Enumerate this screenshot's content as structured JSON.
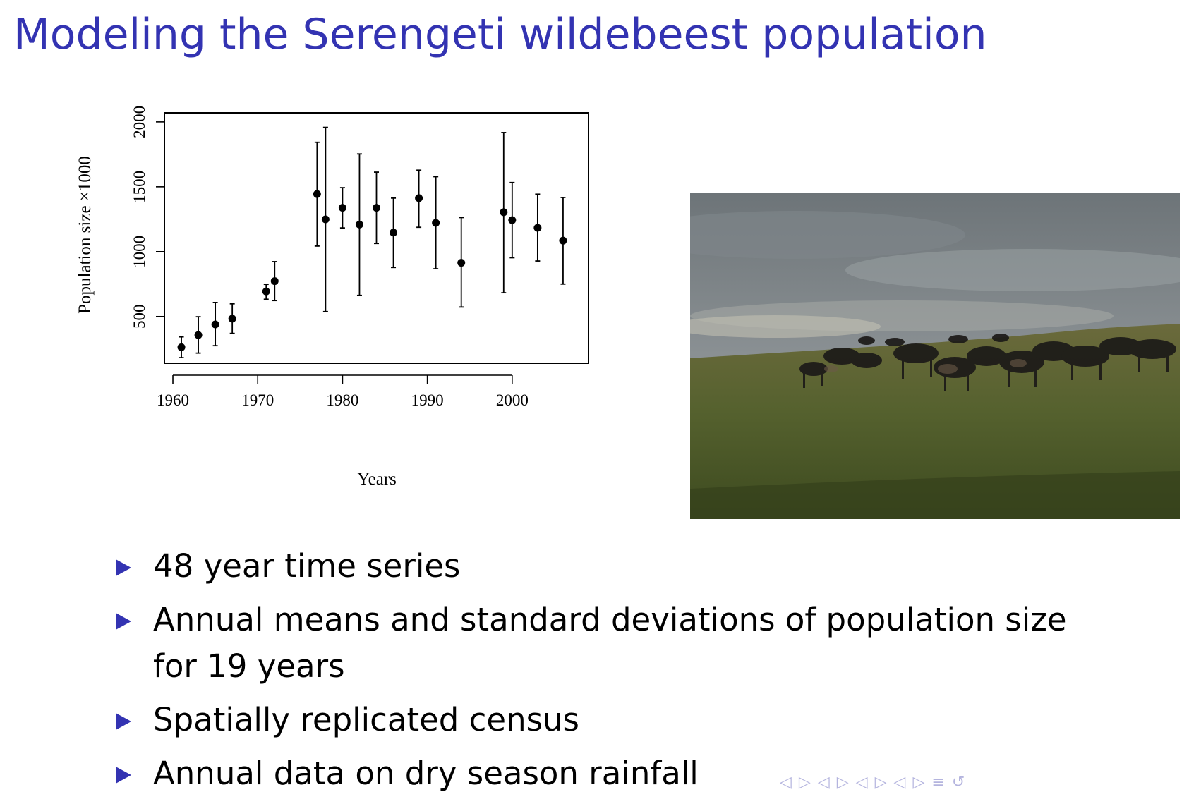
{
  "slide": {
    "title": "Modeling the Serengeti wildebeest population"
  },
  "chart_data": {
    "type": "scatter",
    "xlabel": "Years",
    "ylabel": "Population size ×1000",
    "xlim": [
      1959,
      2009
    ],
    "ylim": [
      140,
      2070
    ],
    "xticks": [
      1960,
      1970,
      1980,
      1990,
      2000
    ],
    "yticks": [
      500,
      1000,
      1500,
      2000
    ],
    "grid": false,
    "series": [
      {
        "x": [
          1961,
          1963,
          1965,
          1967,
          1971,
          1972,
          1977,
          1978,
          1980,
          1982,
          1984,
          1986,
          1989,
          1991,
          1994,
          1999,
          2000,
          2003,
          2006
        ],
        "y": [
          263,
          357,
          439,
          483,
          693,
          773,
          1444,
          1249,
          1338,
          1209,
          1338,
          1147,
          1413,
          1222,
          914,
          1304,
          1243,
          1184,
          1085
        ],
        "y_low": [
          183,
          218,
          275,
          370,
          633,
          623,
          1043,
          538,
          1183,
          663,
          1063,
          878,
          1188,
          868,
          573,
          683,
          953,
          928,
          750
        ],
        "y_high": [
          343,
          498,
          608,
          598,
          748,
          923,
          1843,
          1958,
          1493,
          1753,
          1613,
          1413,
          1628,
          1578,
          1263,
          1918,
          1533,
          1443,
          1418
        ]
      }
    ]
  },
  "photo": {
    "subject": "wildebeest-herd-photo"
  },
  "bullets": [
    "48 year time series",
    "Annual means and standard deviations of population size for 19 years",
    "Spatially replicated census",
    "Annual data on dry season rainfall"
  ],
  "navigation": {
    "icons": [
      "◁",
      "▷",
      "◁",
      "▷",
      "◁",
      "▷",
      "◁",
      "▷",
      "≡",
      "↺"
    ]
  }
}
